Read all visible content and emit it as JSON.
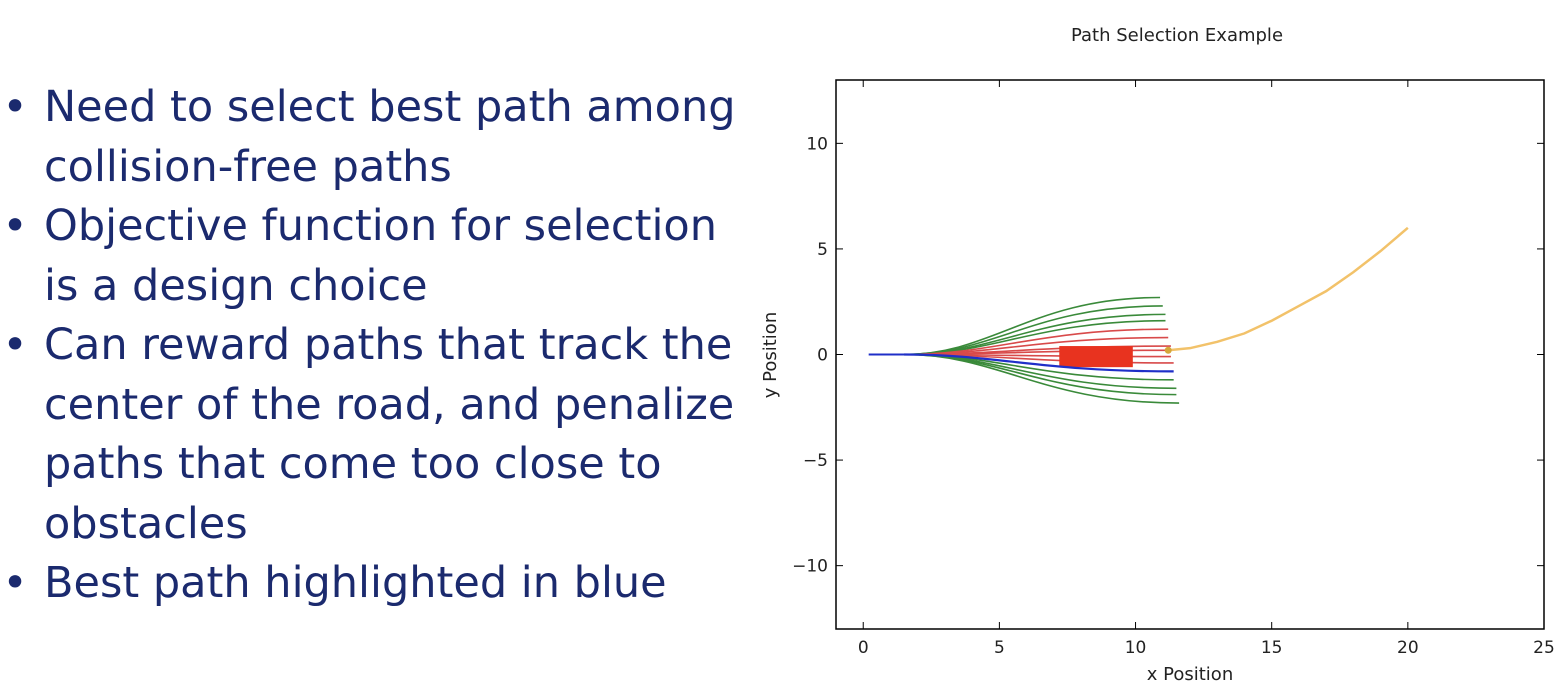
{
  "bullets": [
    "Need to select best path among collision-free paths",
    "Objective function for selection is a design choice",
    "Can reward paths that track the center of the road, and penalize paths that come too close to obstacles",
    "Best path highlighted in blue"
  ],
  "chart_data": {
    "type": "line",
    "title": "Path Selection Example",
    "xlabel": "x Position",
    "ylabel": "y Position",
    "xlim": [
      -1,
      25
    ],
    "ylim": [
      -13,
      13
    ],
    "xticks": [
      0,
      5,
      10,
      15,
      20,
      25
    ],
    "yticks": [
      10,
      5,
      0,
      -5,
      -10
    ],
    "grid": false,
    "colors": {
      "collision_free": "#3a8a3a",
      "colliding": "#d84a4a",
      "best": "#1f2fc8",
      "goal_path": "#f2c26a",
      "obstacle": "#e8331f",
      "start": "#1f2fc8"
    },
    "start_segment": {
      "x": [
        0.2,
        1.5
      ],
      "y": [
        0,
        0
      ],
      "color": "best"
    },
    "candidate_paths": [
      {
        "category": "collision_free",
        "end_x": 10.9,
        "end_y": 2.7
      },
      {
        "category": "collision_free",
        "end_x": 11.0,
        "end_y": 2.3
      },
      {
        "category": "collision_free",
        "end_x": 11.1,
        "end_y": 1.9
      },
      {
        "category": "collision_free",
        "end_x": 11.1,
        "end_y": 1.6
      },
      {
        "category": "colliding",
        "end_x": 11.2,
        "end_y": 1.2
      },
      {
        "category": "colliding",
        "end_x": 11.2,
        "end_y": 0.8
      },
      {
        "category": "colliding",
        "end_x": 11.3,
        "end_y": 0.4
      },
      {
        "category": "colliding",
        "end_x": 11.3,
        "end_y": 0.2
      },
      {
        "category": "colliding",
        "end_x": 11.3,
        "end_y": -0.1
      },
      {
        "category": "colliding",
        "end_x": 11.4,
        "end_y": -0.4
      },
      {
        "category": "best",
        "end_x": 11.4,
        "end_y": -0.8
      },
      {
        "category": "collision_free",
        "end_x": 11.4,
        "end_y": -1.2
      },
      {
        "category": "collision_free",
        "end_x": 11.5,
        "end_y": -1.6
      },
      {
        "category": "collision_free",
        "end_x": 11.5,
        "end_y": -1.9
      },
      {
        "category": "collision_free",
        "end_x": 11.6,
        "end_y": -2.3
      }
    ],
    "obstacle": {
      "x0": 7.2,
      "x1": 9.9,
      "y0": -0.6,
      "y1": 0.4
    },
    "goal_point": {
      "x": 11.2,
      "y": 0.2
    },
    "goal_path": {
      "x": [
        11.2,
        12,
        13,
        14,
        15,
        16,
        17,
        18,
        19,
        20
      ],
      "y": [
        0.2,
        0.3,
        0.6,
        1.0,
        1.6,
        2.3,
        3.0,
        3.9,
        4.9,
        6.0
      ]
    }
  }
}
